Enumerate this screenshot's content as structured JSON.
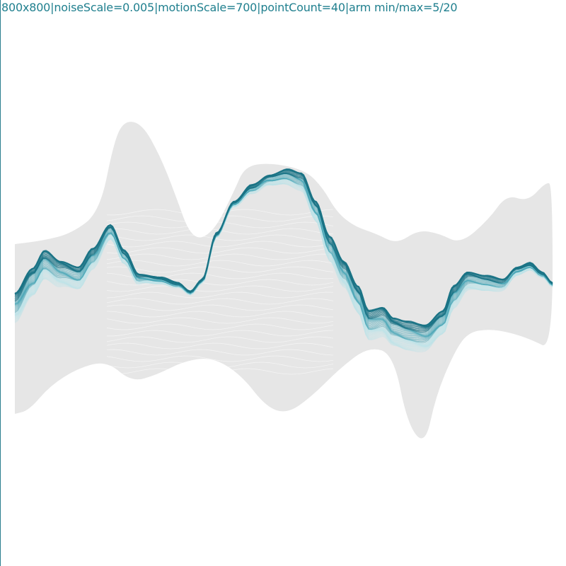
{
  "caption": {
    "text": "800x800|noiseScale=0.005|motionScale=700|pointCount=40|arm min/max=5/20"
  },
  "canvas": {
    "background": "#ffffff",
    "frame_color": "#2a7f8f"
  },
  "palette": {
    "shadow_band": "#e6e6e6",
    "ribbon_light": "#bfe3e8",
    "ribbon_mid": "#4aa8b8",
    "ribbon_dark": "#1a7385",
    "caption_color": "#1f7f8e"
  }
}
